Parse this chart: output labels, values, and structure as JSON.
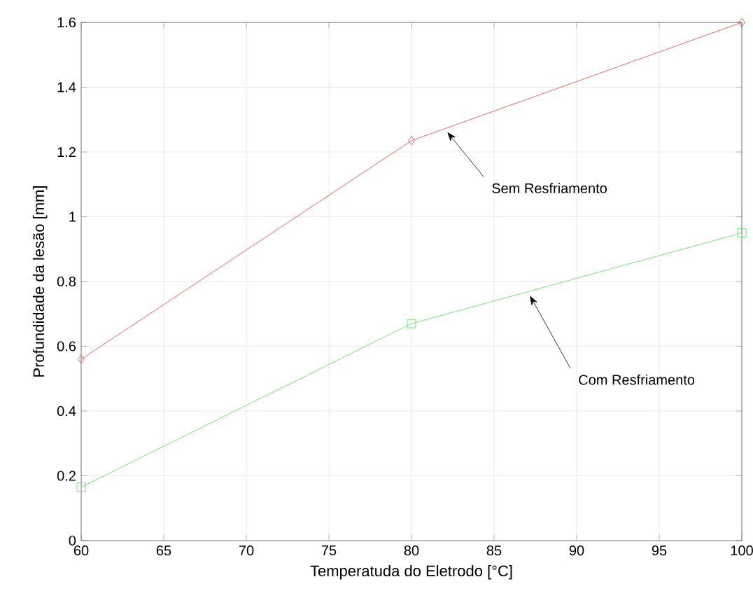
{
  "chart_data": {
    "type": "line",
    "xlabel": "Temperatuda do Eletrodo [°C]",
    "ylabel": "Profundidade da lesão [mm]",
    "x": [
      60,
      80,
      100
    ],
    "series": [
      {
        "color": "#e8413c",
        "marker": "diamond",
        "values": [
          0.56,
          1.235,
          1.6
        ]
      },
      {
        "color": "#4fdc4f",
        "marker": "square",
        "values": [
          0.165,
          0.67,
          0.95
        ]
      }
    ],
    "xlim": [
      60,
      100
    ],
    "xticks": [
      60,
      65,
      70,
      75,
      80,
      85,
      90,
      95,
      100
    ],
    "ylim": [
      0,
      1.6
    ],
    "yticks": [
      0,
      {
        "value": 0.2,
        "label": "0.2"
      },
      {
        "value": 0.4,
        "label": "0.4"
      },
      {
        "value": 0.6,
        "label": "0.6"
      },
      {
        "value": 0.8,
        "label": "0.8"
      },
      1,
      {
        "value": 1.2,
        "label": "1.2"
      },
      {
        "value": 1.4,
        "label": "1.4"
      },
      {
        "value": 1.6,
        "label": "1.6"
      }
    ],
    "grid": true,
    "line_style": "solid",
    "annotations": [
      {
        "text": "Sem Resfriamento",
        "x": 82,
        "y": 1.27
      },
      {
        "text": "Com Resfriamento",
        "x": 87,
        "y": 0.765
      }
    ]
  }
}
